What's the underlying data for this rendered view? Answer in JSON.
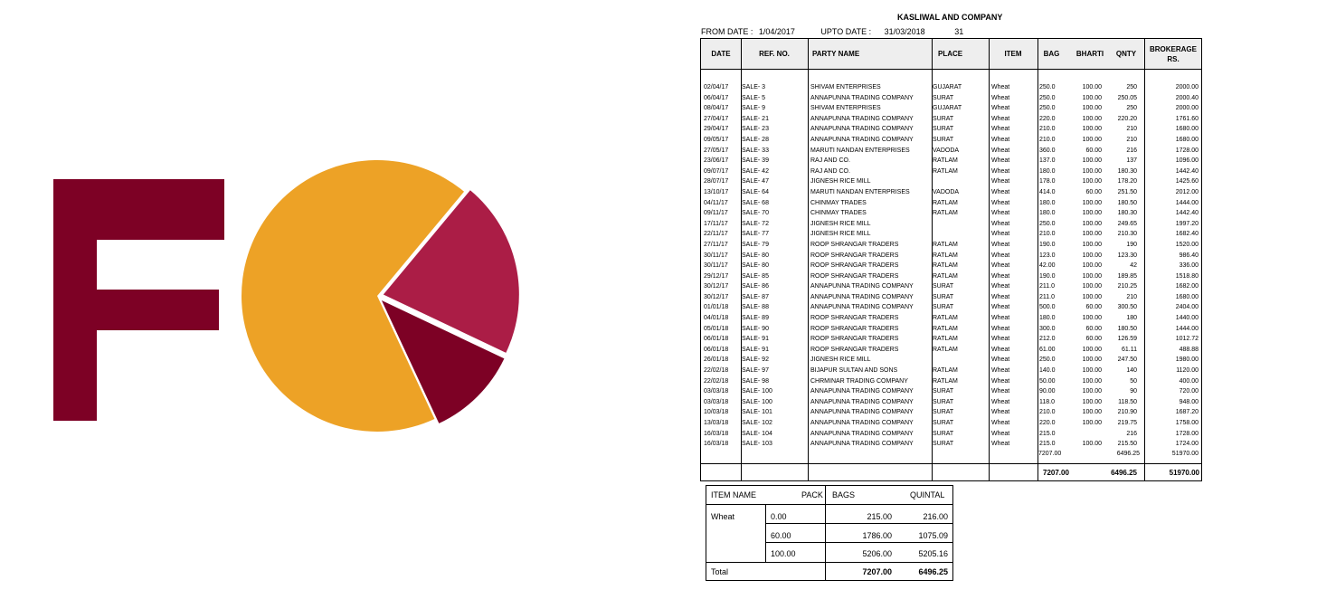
{
  "logo": {
    "letter": "F",
    "letter_color": "#7d0125",
    "pie_colors": [
      "#eda226",
      "#ab1d46",
      "#7d0125"
    ],
    "pie_shares": [
      0.68,
      0.21,
      0.11
    ]
  },
  "report": {
    "company": "KASLIWAL AND COMPANY",
    "from_label": "FROM DATE :",
    "from_value": "1/04/2017",
    "upto_label": "UPTO DATE :",
    "upto_value": "31/03/2018",
    "count": "31",
    "headers": {
      "date": "DATE",
      "ref": "REF. NO.",
      "party": "PARTY NAME",
      "place": "PLACE",
      "item": "ITEM",
      "bag": "BAG",
      "bharti": "BHARTI",
      "qnty": "QNTY",
      "brokerage": "BROKERAGE RS."
    },
    "rows": [
      [
        "02/04/17",
        "SALE-  3",
        "SHIVAM ENTERPRISES",
        "GUJARAT",
        "Wheat",
        "250.0",
        "100.00",
        "250",
        "2000.00"
      ],
      [
        "06/04/17",
        "SALE-  5",
        "ANNAPUNNA TRADING COMPANY",
        "SURAT",
        "Wheat",
        "250.0",
        "100.00",
        "250.05",
        "2000.40"
      ],
      [
        "08/04/17",
        "SALE-  9",
        "SHIVAM ENTERPRISES",
        "GUJARAT",
        "Wheat",
        "250.0",
        "100.00",
        "250",
        "2000.00"
      ],
      [
        "27/04/17",
        "SALE-  21",
        "ANNAPUNNA TRADING COMPANY",
        "SURAT",
        "Wheat",
        "220.0",
        "100.00",
        "220.20",
        "1761.60"
      ],
      [
        "29/04/17",
        "SALE-  23",
        "ANNAPUNNA TRADING COMPANY",
        "SURAT",
        "Wheat",
        "210.0",
        "100.00",
        "210",
        "1680.00"
      ],
      [
        "09/05/17",
        "SALE-  28",
        "ANNAPUNNA TRADING COMPANY",
        "SURAT",
        "Wheat",
        "210.0",
        "100.00",
        "210",
        "1680.00"
      ],
      [
        "27/05/17",
        "SALE-  33",
        "MARUTI NANDAN ENTERPRISES",
        "VADODA",
        "Wheat",
        "360.0",
        "60.00",
        "216",
        "1728.00"
      ],
      [
        "23/06/17",
        "SALE-  39",
        "RAJ AND CO.",
        "RATLAM",
        "Wheat",
        "137.0",
        "100.00",
        "137",
        "1096.00"
      ],
      [
        "09/07/17",
        "SALE-  42",
        "RAJ AND CO.",
        "RATLAM",
        "Wheat",
        "180.0",
        "100.00",
        "180.30",
        "1442.40"
      ],
      [
        "28/07/17",
        "SALE-  47",
        "JIGNESH  RICE MILL",
        "",
        "Wheat",
        "178.0",
        "100.00",
        "178.20",
        "1425.60"
      ],
      [
        "13/10/17",
        "SALE-  64",
        "MARUTI NANDAN ENTERPRISES",
        "VADODA",
        "Wheat",
        "414.0",
        "60.00",
        "251.50",
        "2012.00"
      ],
      [
        "04/11/17",
        "SALE-  68",
        "CHINMAY    TRADES",
        "RATLAM",
        "Wheat",
        "180.0",
        "100.00",
        "180.50",
        "1444.00"
      ],
      [
        "09/11/17",
        "SALE-  70",
        "CHINMAY    TRADES",
        "RATLAM",
        "Wheat",
        "180.0",
        "100.00",
        "180.30",
        "1442.40"
      ],
      [
        "17/11/17",
        "SALE-  72",
        "JIGNESH  RICE MILL",
        "",
        "Wheat",
        "250.0",
        "100.00",
        "249.65",
        "1997.20"
      ],
      [
        "22/11/17",
        "SALE-  77",
        "JIGNESH  RICE MILL",
        "",
        "Wheat",
        "210.0",
        "100.00",
        "210.30",
        "1682.40"
      ],
      [
        "27/11/17",
        "SALE-  79",
        "ROOP SHRANGAR  TRADERS",
        "RATLAM",
        "Wheat",
        "190.0",
        "100.00",
        "190",
        "1520.00"
      ],
      [
        "30/11/17",
        "SALE-  80",
        "ROOP SHRANGAR  TRADERS",
        "RATLAM",
        "Wheat",
        "123.0",
        "100.00",
        "123.30",
        "986.40"
      ],
      [
        "30/11/17",
        "SALE-  80",
        "ROOP SHRANGAR  TRADERS",
        "RATLAM",
        "Wheat",
        "42.00",
        "100.00",
        "42",
        "336.00"
      ],
      [
        "29/12/17",
        "SALE-  85",
        "ROOP SHRANGAR  TRADERS",
        "RATLAM",
        "Wheat",
        "190.0",
        "100.00",
        "189.85",
        "1518.80"
      ],
      [
        "30/12/17",
        "SALE-  86",
        "ANNAPUNNA TRADING COMPANY",
        "SURAT",
        "Wheat",
        "211.0",
        "100.00",
        "210.25",
        "1682.00"
      ],
      [
        "30/12/17",
        "SALE-  87",
        "ANNAPUNNA TRADING COMPANY",
        "SURAT",
        "Wheat",
        "211.0",
        "100.00",
        "210",
        "1680.00"
      ],
      [
        "01/01/18",
        "SALE-  88",
        "ANNAPUNNA TRADING COMPANY",
        "SURAT",
        "Wheat",
        "500.0",
        "60.00",
        "300.50",
        "2404.00"
      ],
      [
        "04/01/18",
        "SALE-  89",
        "ROOP SHRANGAR  TRADERS",
        "RATLAM",
        "Wheat",
        "180.0",
        "100.00",
        "180",
        "1440.00"
      ],
      [
        "05/01/18",
        "SALE-  90",
        "ROOP SHRANGAR  TRADERS",
        "RATLAM",
        "Wheat",
        "300.0",
        "60.00",
        "180.50",
        "1444.00"
      ],
      [
        "06/01/18",
        "SALE-  91",
        "ROOP SHRANGAR  TRADERS",
        "RATLAM",
        "Wheat",
        "212.0",
        "60.00",
        "126.59",
        "1012.72"
      ],
      [
        "06/01/18",
        "SALE-  91",
        "ROOP SHRANGAR  TRADERS",
        "RATLAM",
        "Wheat",
        "61.00",
        "100.00",
        "61.11",
        "488.88"
      ],
      [
        "26/01/18",
        "SALE-  92",
        "JIGNESH  RICE MILL",
        "",
        "Wheat",
        "250.0",
        "100.00",
        "247.50",
        "1980.00"
      ],
      [
        "22/02/18",
        "SALE-  97",
        "BIJAPUR SULTAN AND SONS",
        "RATLAM",
        "Wheat",
        "140.0",
        "100.00",
        "140",
        "1120.00"
      ],
      [
        "22/02/18",
        "SALE-  98",
        "CHRMINAR TRADING COMPANY",
        "RATLAM",
        "Wheat",
        "50.00",
        "100.00",
        "50",
        "400.00"
      ],
      [
        "03/03/18",
        "SALE-  100",
        "ANNAPUNNA TRADING COMPANY",
        "SURAT",
        "Wheat",
        "90.00",
        "100.00",
        "90",
        "720.00"
      ],
      [
        "03/03/18",
        "SALE-  100",
        "ANNAPUNNA TRADING COMPANY",
        "SURAT",
        "Wheat",
        "118.0",
        "100.00",
        "118.50",
        "948.00"
      ],
      [
        "10/03/18",
        "SALE-  101",
        "ANNAPUNNA TRADING COMPANY",
        "SURAT",
        "Wheat",
        "210.0",
        "100.00",
        "210.90",
        "1687.20"
      ],
      [
        "13/03/18",
        "SALE-  102",
        "ANNAPUNNA TRADING COMPANY",
        "SURAT",
        "Wheat",
        "220.0",
        "100.00",
        "219.75",
        "1758.00"
      ],
      [
        "16/03/18",
        "SALE-  104",
        "ANNAPUNNA TRADING COMPANY",
        "SURAT",
        "Wheat",
        "215.0",
        "",
        "216",
        "1728.00"
      ],
      [
        "16/03/18",
        "SALE-  103",
        "ANNAPUNNA TRADING COMPANY",
        "SURAT",
        "Wheat",
        "215.0",
        "100.00",
        "215.50",
        "1724.00"
      ]
    ],
    "subtotal": {
      "bag": "7207.00",
      "qnty": "6496.25",
      "brokerage": "51970.00"
    },
    "total": {
      "bag": "7207.00",
      "qnty": "6496.25",
      "brokerage": "51970.00"
    }
  },
  "summary": {
    "headers": {
      "item": "ITEM NAME",
      "pack": "PACK",
      "bags": "BAGS",
      "quintal": "QUINTAL"
    },
    "item": "Wheat",
    "rows": [
      {
        "pack": "0.00",
        "bags": "215.00",
        "quintal": "216.00"
      },
      {
        "pack": "60.00",
        "bags": "1786.00",
        "quintal": "1075.09"
      },
      {
        "pack": "100.00",
        "bags": "5206.00",
        "quintal": "5205.16"
      }
    ],
    "total_label": "Total",
    "total_bags": "7207.00",
    "total_quintal": "6496.25"
  }
}
